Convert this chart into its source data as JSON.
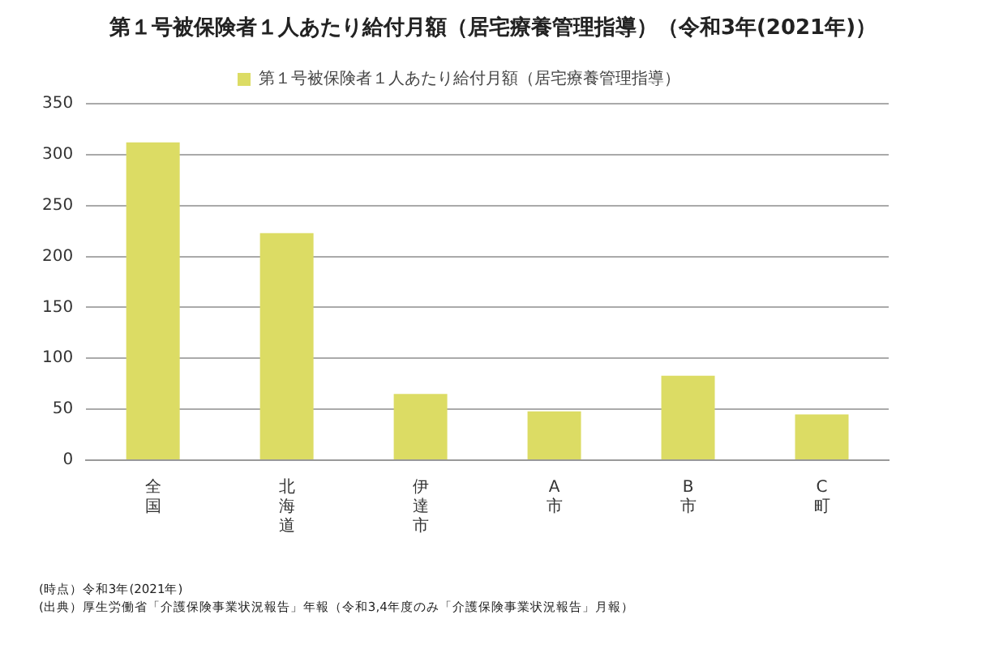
{
  "chart_data": {
    "type": "bar",
    "title": "第１号被保険者１人あたり給付月額（居宅療養管理指導）（令和3年(2021年)）",
    "categories": [
      "全国",
      "北海道",
      "伊達市",
      "A市",
      "B市",
      "C町"
    ],
    "series": [
      {
        "name": "第１号被保険者１人あたり給付月額（居宅療養管理指導）",
        "color": "#dcdc64",
        "values": [
          312,
          223,
          65,
          48,
          83,
          45
        ]
      }
    ],
    "ylim": [
      0,
      350
    ],
    "yticks": [
      0,
      50,
      100,
      150,
      200,
      250,
      300,
      350
    ],
    "grid": "y",
    "legend": "top",
    "annotations": [
      "(時点）令和3年(2021年)",
      "(出典）厚生労働省「介護保険事業状況報告」年報（令和3,4年度のみ「介護保険事業状況報告」月報）"
    ]
  }
}
